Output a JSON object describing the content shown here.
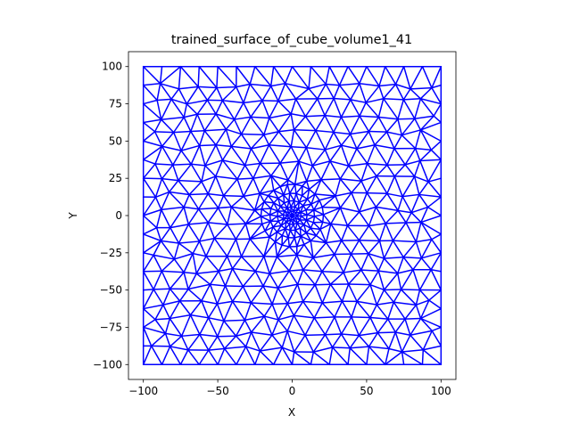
{
  "chart_data": {
    "type": "triangular-mesh",
    "title": "trained_surface_of_cube_volume1_41",
    "xlabel": "X",
    "ylabel": "Y",
    "xlim": [
      -110,
      110
    ],
    "ylim": [
      -110,
      110
    ],
    "xticks": [
      -100,
      -50,
      0,
      50,
      100
    ],
    "yticks": [
      -100,
      -75,
      -50,
      -25,
      0,
      25,
      50,
      75,
      100
    ],
    "xtick_labels": [
      "−100",
      "−50",
      "0",
      "50",
      "100"
    ],
    "ytick_labels": [
      "−100",
      "−75",
      "−50",
      "−25",
      "0",
      "25",
      "50",
      "75",
      "100"
    ],
    "mesh": {
      "domain": {
        "xmin": -100,
        "xmax": 100,
        "ymin": -100,
        "ymax": 100
      },
      "boundary_divisions": 16,
      "interior_spacing": 12,
      "refinement_center": [
        0,
        0
      ],
      "refinement_rings": [
        3,
        6,
        10,
        15,
        21
      ],
      "refinement_points_per_ring": [
        10,
        14,
        18,
        22,
        26
      ],
      "edge_color": "#0000ff"
    },
    "grid": false
  }
}
